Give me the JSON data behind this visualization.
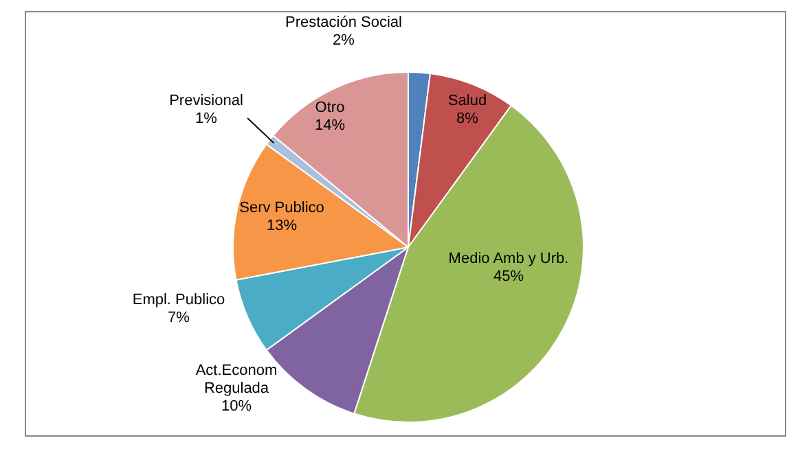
{
  "chart_data": {
    "type": "pie",
    "categories": [
      "Prestación Social",
      "Salud",
      "Medio Amb y Urb.",
      "Act.Econom Regulada",
      "Empl. Publico",
      "Serv Publico",
      "Previsional",
      "Otro"
    ],
    "values": [
      2,
      8,
      45,
      10,
      7,
      13,
      1,
      14
    ],
    "colors": [
      "#4f81bd",
      "#c0504d",
      "#9bbb59",
      "#8064a2",
      "#4bacc6",
      "#f79646",
      "#a7c0de",
      "#d99694"
    ],
    "value_labels": [
      "2%",
      "8%",
      "45%",
      "10%",
      "7%",
      "13%",
      "1%",
      "14%"
    ],
    "legend": false
  }
}
